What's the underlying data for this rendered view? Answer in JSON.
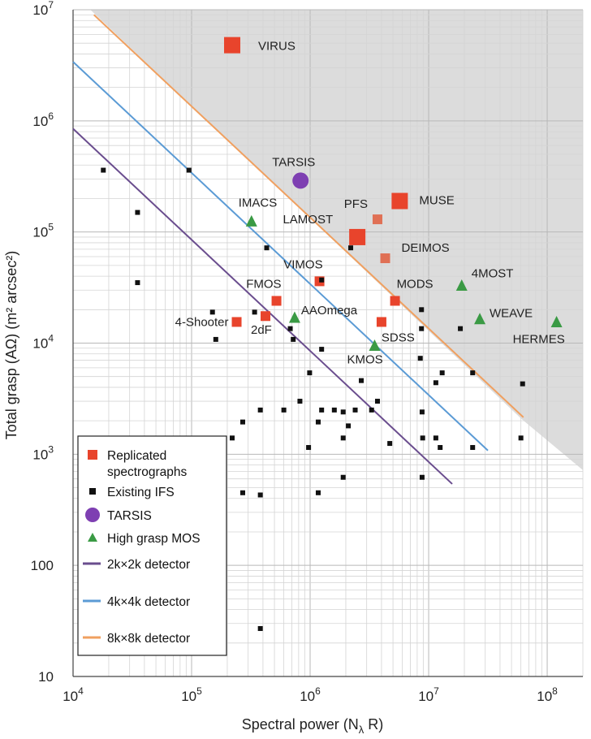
{
  "chart_data": {
    "type": "scatter",
    "xscale": "log",
    "yscale": "log",
    "xlim": [
      10000,
      200000000
    ],
    "ylim": [
      10,
      10000000
    ],
    "xlabel": "Spectral power (N",
    "xlabel_sub": "λ",
    "xlabel_tail": " R)",
    "ylabel": "Total grasp (AΩ) (m² arcsec²)",
    "xticks": [
      {
        "v": 10000,
        "base": "10",
        "exp": "4"
      },
      {
        "v": 100000,
        "base": "10",
        "exp": "5"
      },
      {
        "v": 1000000,
        "base": "10",
        "exp": "6"
      },
      {
        "v": 10000000,
        "base": "10",
        "exp": "7"
      },
      {
        "v": 100000000,
        "base": "10",
        "exp": "8"
      }
    ],
    "yticks": [
      {
        "v": 10,
        "base": "10",
        "exp": ""
      },
      {
        "v": 100,
        "base": "100",
        "exp": ""
      },
      {
        "v": 1000,
        "base": "10",
        "exp": "3"
      },
      {
        "v": 10000,
        "base": "10",
        "exp": "4"
      },
      {
        "v": 100000,
        "base": "10",
        "exp": "5"
      },
      {
        "v": 1000000,
        "base": "10",
        "exp": "6"
      },
      {
        "v": 10000000,
        "base": "10",
        "exp": "7"
      }
    ],
    "shaded_region": {
      "color": "#dcdcdc",
      "boundary": [
        [
          14000,
          10000000
        ],
        [
          200000000,
          10000000
        ],
        [
          200000000,
          720
        ],
        [
          60000000,
          2100
        ]
      ]
    },
    "colors": {
      "replicated": "#e8442c",
      "replicated_light": "#e07055",
      "existing": "#111111",
      "tarsis": "#7e3fb2",
      "mos": "#3a9a44",
      "det2k": "#6a4d8e",
      "det4k": "#5b9bd5",
      "det8k": "#f0a060"
    },
    "series": [
      {
        "name": "Replicated spectrographs",
        "marker": "square",
        "color": "#e8442c",
        "points": [
          {
            "x": 220000,
            "y": 4800000,
            "size": 20,
            "label": "VIRUS"
          },
          {
            "x": 5700000,
            "y": 190000,
            "size": 20,
            "label": "MUSE"
          },
          {
            "x": 2500000,
            "y": 90000,
            "size": 20,
            "label": "LAMOST"
          },
          {
            "x": 3700000,
            "y": 130000,
            "size": 12,
            "label": "PFS",
            "light": true
          },
          {
            "x": 4300000,
            "y": 58000,
            "size": 12,
            "label": "DEIMOS",
            "light": true
          },
          {
            "x": 1200000,
            "y": 36000,
            "size": 12,
            "label": "VIMOS"
          },
          {
            "x": 520000,
            "y": 24000,
            "size": 12,
            "label": "FMOS"
          },
          {
            "x": 5200000,
            "y": 24000,
            "size": 12,
            "label": "MODS"
          },
          {
            "x": 240000,
            "y": 15500,
            "size": 12,
            "label": "4-Shooter"
          },
          {
            "x": 420000,
            "y": 17500,
            "size": 12,
            "label": "2dF"
          },
          {
            "x": 4000000,
            "y": 15500,
            "size": 12,
            "label": "SDSS"
          }
        ]
      },
      {
        "name": "Existing IFS",
        "marker": "square",
        "color": "#111111",
        "points": [
          {
            "x": 18000,
            "y": 360000
          },
          {
            "x": 95000,
            "y": 360000
          },
          {
            "x": 35000,
            "y": 150000
          },
          {
            "x": 35000,
            "y": 35000
          },
          {
            "x": 430000,
            "y": 72000
          },
          {
            "x": 1250000,
            "y": 37000
          },
          {
            "x": 2200000,
            "y": 72000
          },
          {
            "x": 8700000,
            "y": 13500
          },
          {
            "x": 150000,
            "y": 19000
          },
          {
            "x": 340000,
            "y": 19000
          },
          {
            "x": 160000,
            "y": 10800
          },
          {
            "x": 680000,
            "y": 13500
          },
          {
            "x": 720000,
            "y": 10800
          },
          {
            "x": 1250000,
            "y": 8800
          },
          {
            "x": 8700000,
            "y": 20000
          },
          {
            "x": 18500000,
            "y": 13500
          },
          {
            "x": 8500000,
            "y": 7300
          },
          {
            "x": 13000000,
            "y": 5400
          },
          {
            "x": 11500000,
            "y": 4400
          },
          {
            "x": 23500000,
            "y": 5400
          },
          {
            "x": 62000000,
            "y": 4300
          },
          {
            "x": 990000,
            "y": 5400
          },
          {
            "x": 2700000,
            "y": 4600
          },
          {
            "x": 3700000,
            "y": 3000
          },
          {
            "x": 820000,
            "y": 3000
          },
          {
            "x": 380000,
            "y": 2500
          },
          {
            "x": 600000,
            "y": 2500
          },
          {
            "x": 1250000,
            "y": 2500
          },
          {
            "x": 1600000,
            "y": 2500
          },
          {
            "x": 1900000,
            "y": 2400
          },
          {
            "x": 2400000,
            "y": 2500
          },
          {
            "x": 3300000,
            "y": 2500
          },
          {
            "x": 8800000,
            "y": 2400
          },
          {
            "x": 270000,
            "y": 1950
          },
          {
            "x": 1170000,
            "y": 1950
          },
          {
            "x": 2100000,
            "y": 1800
          },
          {
            "x": 220000,
            "y": 1400
          },
          {
            "x": 970000,
            "y": 1150
          },
          {
            "x": 1900000,
            "y": 1400
          },
          {
            "x": 4700000,
            "y": 1250
          },
          {
            "x": 8900000,
            "y": 1400
          },
          {
            "x": 11500000,
            "y": 1400
          },
          {
            "x": 12500000,
            "y": 1150
          },
          {
            "x": 23500000,
            "y": 1150
          },
          {
            "x": 60000000,
            "y": 1400
          },
          {
            "x": 270000,
            "y": 450
          },
          {
            "x": 380000,
            "y": 430
          },
          {
            "x": 1170000,
            "y": 450
          },
          {
            "x": 1900000,
            "y": 620
          },
          {
            "x": 8800000,
            "y": 620
          },
          {
            "x": 380000,
            "y": 27
          }
        ]
      },
      {
        "name": "TARSIS",
        "marker": "circle",
        "color": "#7e3fb2",
        "points": [
          {
            "x": 830000,
            "y": 290000,
            "size": 20,
            "label": "TARSIS"
          }
        ]
      },
      {
        "name": "High grasp MOS",
        "marker": "triangle",
        "color": "#3a9a44",
        "points": [
          {
            "x": 320000,
            "y": 125000,
            "label": "IMACS"
          },
          {
            "x": 740000,
            "y": 17000,
            "label": "AAOmega"
          },
          {
            "x": 3500000,
            "y": 9500,
            "label": "KMOS"
          },
          {
            "x": 19000000,
            "y": 33000,
            "label": "4MOST"
          },
          {
            "x": 27000000,
            "y": 16500,
            "label": "WEAVE"
          },
          {
            "x": 120000000,
            "y": 15500,
            "label": "HERMES"
          }
        ]
      }
    ],
    "lines": [
      {
        "name": "2k×2k detector",
        "color": "#6a4d8e",
        "points": [
          [
            10000,
            850000
          ],
          [
            15800000,
            540
          ]
        ]
      },
      {
        "name": "4k×4k detector",
        "color": "#5b9bd5",
        "points": [
          [
            10000,
            3400000
          ],
          [
            31600000,
            1080
          ]
        ]
      },
      {
        "name": "8k×8k detector",
        "color": "#f0a060",
        "points": [
          [
            15000,
            9000000
          ],
          [
            63000000,
            2150
          ]
        ]
      }
    ],
    "legend": {
      "position": "lower-left",
      "entries": [
        {
          "kind": "square",
          "color": "#e8442c",
          "label": [
            "Replicated",
            "spectrographs"
          ]
        },
        {
          "kind": "smallsquare",
          "color": "#111111",
          "label": [
            "Existing IFS"
          ]
        },
        {
          "kind": "circle",
          "color": "#7e3fb2",
          "label": [
            "TARSIS"
          ],
          "text_color": "#7e3fb2"
        },
        {
          "kind": "triangle",
          "color": "#3a9a44",
          "label": [
            "High grasp MOS"
          ]
        },
        {
          "kind": "line",
          "color": "#6a4d8e",
          "label": [
            "2k×2k detector"
          ]
        },
        {
          "kind": "line",
          "color": "#5b9bd5",
          "label": [
            "4k×4k detector"
          ]
        },
        {
          "kind": "line",
          "color": "#f0a060",
          "label": [
            "8k×8k detector"
          ]
        }
      ]
    },
    "grid": true
  }
}
